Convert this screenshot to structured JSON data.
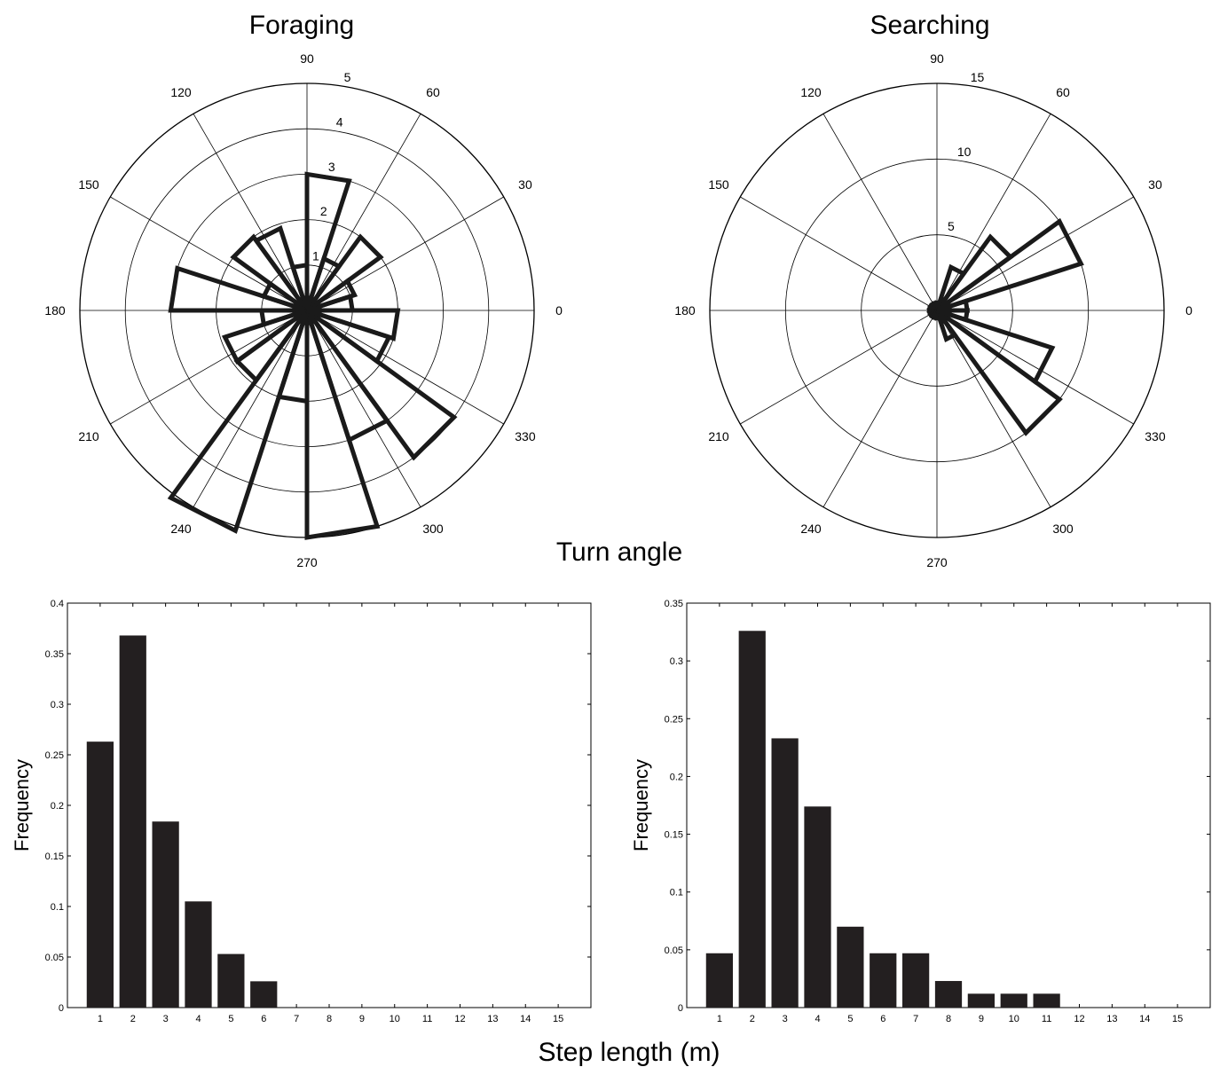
{
  "figure": {
    "turn_angle_label": "Turn angle",
    "step_length_label": "Step length (m)"
  },
  "chart_data": [
    {
      "type": "polar-histogram",
      "title": "Foraging",
      "angle_ticks": [
        "0",
        "30",
        "60",
        "90",
        "120",
        "150",
        "180",
        "210",
        "240",
        "270",
        "300",
        "330"
      ],
      "radial_ticks": [
        1,
        2,
        3,
        4,
        5
      ],
      "radial_max": 5,
      "bin_width_deg": 18,
      "bins": [
        {
          "start": 0,
          "value": 1.0
        },
        {
          "start": 18,
          "value": 1.1
        },
        {
          "start": 36,
          "value": 2.0
        },
        {
          "start": 54,
          "value": 1.2
        },
        {
          "start": 72,
          "value": 3.0
        },
        {
          "start": 90,
          "value": 1.0
        },
        {
          "start": 108,
          "value": 1.9
        },
        {
          "start": 126,
          "value": 2.0
        },
        {
          "start": 144,
          "value": 1.0
        },
        {
          "start": 162,
          "value": 3.0
        },
        {
          "start": 180,
          "value": 1.0
        },
        {
          "start": 198,
          "value": 1.9
        },
        {
          "start": 216,
          "value": 1.9
        },
        {
          "start": 234,
          "value": 5.1
        },
        {
          "start": 252,
          "value": 2.0
        },
        {
          "start": 270,
          "value": 5.0
        },
        {
          "start": 288,
          "value": 3.0
        },
        {
          "start": 306,
          "value": 4.0
        },
        {
          "start": 324,
          "value": 1.9
        },
        {
          "start": 342,
          "value": 2.0
        }
      ]
    },
    {
      "type": "polar-histogram",
      "title": "Searching",
      "angle_ticks": [
        "0",
        "30",
        "60",
        "90",
        "120",
        "150",
        "180",
        "210",
        "240",
        "270",
        "300",
        "330"
      ],
      "radial_ticks": [
        5,
        10,
        15
      ],
      "radial_max": 15,
      "bin_width_deg": 18,
      "bins": [
        {
          "start": 0,
          "value": 2.0
        },
        {
          "start": 18,
          "value": 10.0
        },
        {
          "start": 36,
          "value": 6.0
        },
        {
          "start": 54,
          "value": 3.0
        },
        {
          "start": 72,
          "value": 0.5
        },
        {
          "start": 90,
          "value": 0.5
        },
        {
          "start": 108,
          "value": 0.5
        },
        {
          "start": 126,
          "value": 0.5
        },
        {
          "start": 144,
          "value": 0.5
        },
        {
          "start": 162,
          "value": 0.5
        },
        {
          "start": 180,
          "value": 0.5
        },
        {
          "start": 198,
          "value": 0.5
        },
        {
          "start": 216,
          "value": 0.5
        },
        {
          "start": 234,
          "value": 0.5
        },
        {
          "start": 252,
          "value": 0.5
        },
        {
          "start": 270,
          "value": 0.5
        },
        {
          "start": 288,
          "value": 2.0
        },
        {
          "start": 306,
          "value": 10.0
        },
        {
          "start": 324,
          "value": 8.0
        },
        {
          "start": 342,
          "value": 2.0
        }
      ]
    },
    {
      "type": "bar",
      "title": "",
      "xlabel": "",
      "ylabel": "Frequency",
      "categories": [
        "1",
        "2",
        "3",
        "4",
        "5",
        "6",
        "7",
        "8",
        "9",
        "10",
        "11",
        "12",
        "13",
        "14",
        "15"
      ],
      "values": [
        0.263,
        0.368,
        0.184,
        0.105,
        0.053,
        0.026,
        0,
        0,
        0,
        0,
        0,
        0,
        0,
        0,
        0
      ],
      "ylim": [
        0,
        0.4
      ],
      "yticks": [
        "0",
        "0.05",
        "0.1",
        "0.15",
        "0.2",
        "0.25",
        "0.3",
        "0.35",
        "0.4"
      ]
    },
    {
      "type": "bar",
      "title": "",
      "xlabel": "",
      "ylabel": "Frequency",
      "categories": [
        "1",
        "2",
        "3",
        "4",
        "5",
        "6",
        "7",
        "8",
        "9",
        "10",
        "11",
        "12",
        "13",
        "14",
        "15"
      ],
      "values": [
        0.047,
        0.326,
        0.233,
        0.174,
        0.07,
        0.047,
        0.047,
        0.023,
        0.012,
        0.012,
        0.012,
        0,
        0,
        0,
        0
      ],
      "ylim": [
        0,
        0.35
      ],
      "yticks": [
        "0",
        "0.05",
        "0.1",
        "0.15",
        "0.2",
        "0.25",
        "0.3",
        "0.35"
      ]
    }
  ]
}
